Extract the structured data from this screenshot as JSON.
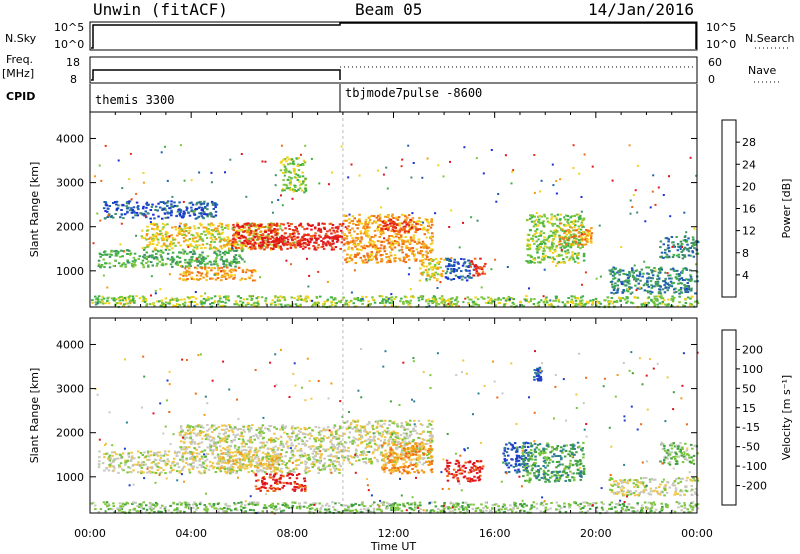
{
  "header": {
    "title": "Unwin (fitACF)",
    "beam": "Beam 05",
    "date": "14/Jan/2016"
  },
  "top_panels": {
    "nsky_label": "N.Sky",
    "nsky_ticks": [
      "10^5",
      "10^0"
    ],
    "nsearch_label": "N.Search",
    "nsearch_ticks": [
      "10^5",
      "10^0"
    ],
    "freq_label_1": "Freq.",
    "freq_label_2": "[MHz]",
    "freq_ticks": [
      "18",
      "8"
    ],
    "nave_label": "Nave",
    "nave_ticks": [
      "60",
      "0"
    ],
    "cpid_label": "CPID",
    "cpid_segments": [
      {
        "name": "themis 3300",
        "start_hour": 0,
        "end_hour": 10
      },
      {
        "name": "tbjmode7pulse -8600",
        "start_hour": 10,
        "end_hour": 24
      }
    ]
  },
  "chart_data": [
    {
      "type": "heatmap",
      "ylabel": "Slant Range [km]",
      "yticks": [
        "4000",
        "3000",
        "2000",
        "1000"
      ],
      "ylim": [
        180,
        4600
      ],
      "xlim": [
        0,
        24
      ],
      "colorbar": {
        "label": "Power [dB]",
        "ticks": [
          "28",
          "24",
          "20",
          "16",
          "12",
          "8",
          "4"
        ],
        "colors": [
          "#1a2fd8",
          "#1f5fb3",
          "#3f8e6a",
          "#3fb048",
          "#7cc63e",
          "#f2d21a",
          "#f49a16",
          "#ef6a14",
          "#e8331a",
          "#e0141c"
        ]
      },
      "regions": [
        {
          "h0": 0.3,
          "h1": 6.0,
          "r0": 1100,
          "r1": 1500,
          "level": 3
        },
        {
          "h0": 0.5,
          "h1": 5.0,
          "r0": 2200,
          "r1": 2600,
          "level": 1
        },
        {
          "h0": 2.0,
          "h1": 7.5,
          "r0": 1500,
          "r1": 2100,
          "level": 5
        },
        {
          "h0": 5.5,
          "h1": 10.0,
          "r0": 1500,
          "r1": 2100,
          "level": 8
        },
        {
          "h0": 6.0,
          "h1": 10.0,
          "r0": 1600,
          "r1": 1800,
          "level": 9
        },
        {
          "h0": 3.5,
          "h1": 6.5,
          "r0": 800,
          "r1": 1100,
          "level": 6
        },
        {
          "h0": 10.0,
          "h1": 13.5,
          "r0": 1200,
          "r1": 2300,
          "level": 6
        },
        {
          "h0": 11.5,
          "h1": 13.0,
          "r0": 1900,
          "r1": 2200,
          "level": 8
        },
        {
          "h0": 13.0,
          "h1": 14.0,
          "r0": 800,
          "r1": 1300,
          "level": 5
        },
        {
          "h0": 14.0,
          "h1": 15.2,
          "r0": 800,
          "r1": 1300,
          "level": 1
        },
        {
          "h0": 15.0,
          "h1": 15.6,
          "r0": 900,
          "r1": 1300,
          "level": 8
        },
        {
          "h0": 17.2,
          "h1": 19.5,
          "r0": 1200,
          "r1": 2300,
          "level": 4
        },
        {
          "h0": 18.5,
          "h1": 19.8,
          "r0": 1600,
          "r1": 2000,
          "level": 6
        },
        {
          "h0": 20.5,
          "h1": 24.0,
          "r0": 500,
          "r1": 1100,
          "level": 2
        },
        {
          "h0": 22.5,
          "h1": 24.0,
          "r0": 1300,
          "r1": 1800,
          "level": 2
        },
        {
          "h0": 7.5,
          "h1": 8.5,
          "r0": 2800,
          "r1": 3600,
          "level": 4
        },
        {
          "h0": 0.0,
          "h1": 24.0,
          "r0": 200,
          "r1": 450,
          "level": 4
        }
      ]
    },
    {
      "type": "heatmap",
      "ylabel": "Slant Range [km]",
      "yticks": [
        "4000",
        "3000",
        "2000",
        "1000"
      ],
      "ylim": [
        180,
        4600
      ],
      "xlim": [
        0,
        24
      ],
      "xticks": [
        "00:00",
        "04:00",
        "08:00",
        "12:00",
        "16:00",
        "20:00",
        "00:00"
      ],
      "xlabel": "Time UT",
      "colorbar": {
        "label": "Velocity [m s⁻¹]",
        "ticks": [
          "200",
          "100",
          "50",
          "15",
          "-15",
          "-50",
          "-100",
          "-200"
        ],
        "colors": [
          "#e0141c",
          "#ef6a14",
          "#f49a16",
          "#f2c542",
          "#c8c8c0",
          "#7cc63e",
          "#3fa040",
          "#2f7f95",
          "#1f3fc8"
        ]
      },
      "regions": [
        {
          "h0": 0.3,
          "h1": 10.0,
          "r0": 1100,
          "r1": 1600,
          "level": 4
        },
        {
          "h0": 3.5,
          "h1": 10.0,
          "r0": 1600,
          "r1": 2200,
          "level": 4
        },
        {
          "h0": 6.5,
          "h1": 8.5,
          "r0": 700,
          "r1": 1100,
          "level": 0
        },
        {
          "h0": 5.0,
          "h1": 7.5,
          "r0": 1200,
          "r1": 1600,
          "level": 3
        },
        {
          "h0": 10.0,
          "h1": 13.5,
          "r0": 1300,
          "r1": 2300,
          "level": 4
        },
        {
          "h0": 11.5,
          "h1": 13.5,
          "r0": 1100,
          "r1": 1800,
          "level": 2
        },
        {
          "h0": 14.0,
          "h1": 15.5,
          "r0": 900,
          "r1": 1400,
          "level": 0
        },
        {
          "h0": 16.3,
          "h1": 17.3,
          "r0": 1100,
          "r1": 1800,
          "level": 8
        },
        {
          "h0": 17.0,
          "h1": 19.5,
          "r0": 900,
          "r1": 1800,
          "level": 6
        },
        {
          "h0": 20.5,
          "h1": 24.0,
          "r0": 600,
          "r1": 1000,
          "level": 4
        },
        {
          "h0": 22.5,
          "h1": 24.0,
          "r0": 1300,
          "r1": 1800,
          "level": 5
        },
        {
          "h0": 17.5,
          "h1": 17.8,
          "r0": 3200,
          "r1": 3500,
          "level": 8
        },
        {
          "h0": 0.0,
          "h1": 24.0,
          "r0": 200,
          "r1": 450,
          "level": 5
        }
      ]
    }
  ]
}
